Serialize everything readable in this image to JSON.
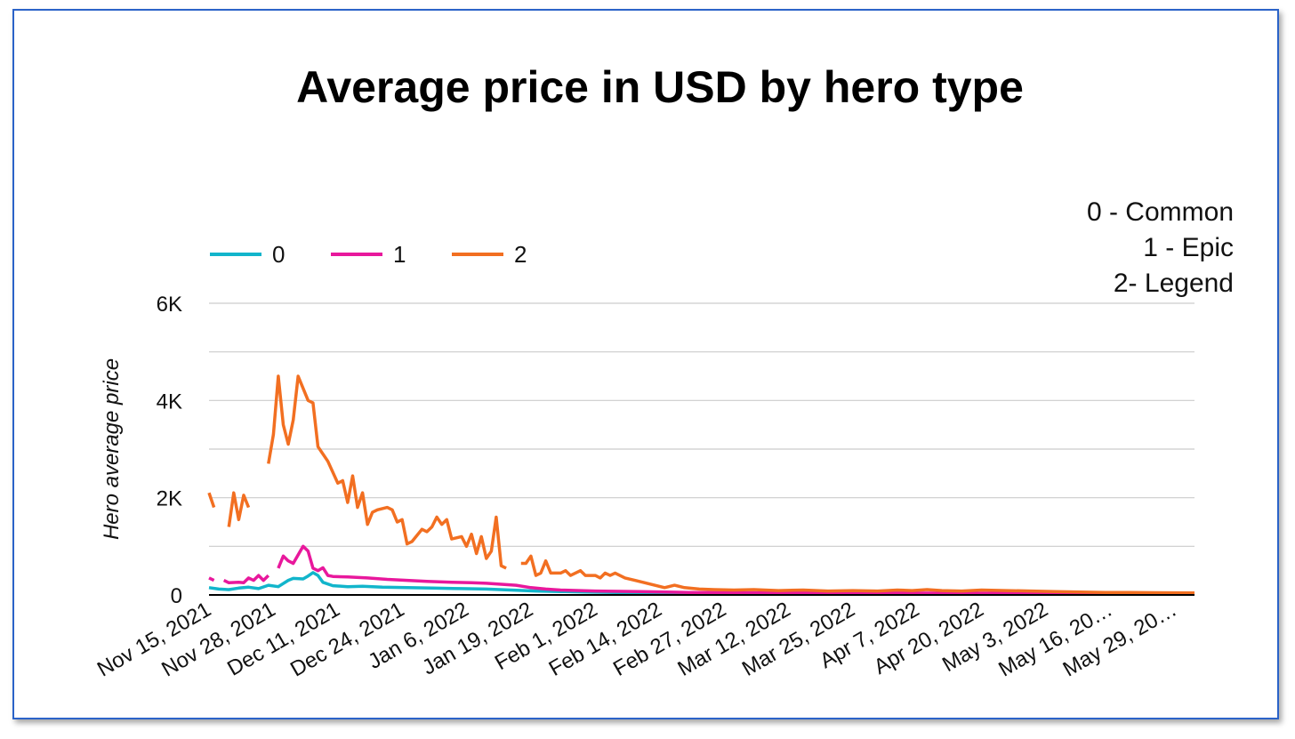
{
  "chart_data": {
    "type": "line",
    "title": "Average price in USD by hero type",
    "xlabel": "",
    "ylabel": "Hero average price",
    "ylim": [
      0,
      6000
    ],
    "y_ticks": [
      0,
      2000,
      4000,
      6000
    ],
    "y_tick_labels": [
      "0",
      "2K",
      "4K",
      "6K"
    ],
    "grid": true,
    "legend_position": "top-left",
    "note_lines": [
      "0 - Common",
      "1 - Epic",
      "2- Legend"
    ],
    "x_start": "2021-11-15",
    "x_end": "2022-06-02",
    "x_tick_dates": [
      "2021-11-15",
      "2021-11-28",
      "2021-12-11",
      "2021-12-24",
      "2022-01-06",
      "2022-01-19",
      "2022-02-01",
      "2022-02-14",
      "2022-02-27",
      "2022-03-12",
      "2022-03-25",
      "2022-04-07",
      "2022-04-20",
      "2022-05-03",
      "2022-05-16",
      "2022-05-29"
    ],
    "x_tick_labels": [
      "Nov 15, 2021",
      "Nov 28, 2021",
      "Dec 11, 2021",
      "Dec 24, 2021",
      "Jan 6, 2022",
      "Jan 19, 2022",
      "Feb 1, 2022",
      "Feb 14, 2022",
      "Feb 27, 2022",
      "Mar 12, 2022",
      "Mar 25, 2022",
      "Apr 7, 2022",
      "Apr 20, 2022",
      "May 3, 2022",
      "May 16, 20…",
      "May 29, 20…"
    ],
    "series": [
      {
        "name": "0",
        "color": "#12b5cb",
        "points": [
          [
            "2021-11-15",
            150
          ],
          [
            "2021-11-17",
            120
          ],
          [
            "2021-11-19",
            110
          ],
          [
            "2021-11-21",
            140
          ],
          [
            "2021-11-23",
            160
          ],
          [
            "2021-11-25",
            130
          ],
          [
            "2021-11-27",
            200
          ],
          [
            "2021-11-29",
            170
          ],
          [
            "2021-12-01",
            300
          ],
          [
            "2021-12-02",
            340
          ],
          [
            "2021-12-04",
            330
          ],
          [
            "2021-12-05",
            390
          ],
          [
            "2021-12-06",
            460
          ],
          [
            "2021-12-07",
            400
          ],
          [
            "2021-12-08",
            260
          ],
          [
            "2021-12-10",
            190
          ],
          [
            "2021-12-13",
            170
          ],
          [
            "2021-12-16",
            180
          ],
          [
            "2021-12-20",
            160
          ],
          [
            "2021-12-25",
            150
          ],
          [
            "2021-12-30",
            140
          ],
          [
            "2022-01-05",
            130
          ],
          [
            "2022-01-10",
            120
          ],
          [
            "2022-01-15",
            100
          ],
          [
            "2022-01-20",
            80
          ],
          [
            "2022-01-25",
            70
          ],
          [
            "2022-01-30",
            60
          ],
          [
            "2022-02-05",
            50
          ],
          [
            "2022-02-10",
            45
          ],
          [
            "2022-02-15",
            40
          ],
          [
            "2022-02-27",
            35
          ],
          [
            "2022-03-15",
            30
          ],
          [
            "2022-04-01",
            28
          ],
          [
            "2022-04-15",
            26
          ],
          [
            "2022-05-01",
            25
          ],
          [
            "2022-05-15",
            24
          ],
          [
            "2022-06-02",
            22
          ]
        ]
      },
      {
        "name": "1",
        "color": "#e8189c",
        "points": [
          [
            "2021-11-15",
            350
          ],
          [
            "2021-11-16",
            300
          ],
          null,
          [
            "2021-11-18",
            300
          ],
          [
            "2021-11-19",
            250
          ],
          [
            "2021-11-21",
            260
          ],
          [
            "2021-11-22",
            250
          ],
          [
            "2021-11-23",
            350
          ],
          [
            "2021-11-24",
            300
          ],
          [
            "2021-11-25",
            400
          ],
          [
            "2021-11-26",
            300
          ],
          [
            "2021-11-27",
            400
          ],
          null,
          [
            "2021-11-29",
            550
          ],
          [
            "2021-11-30",
            800
          ],
          [
            "2021-12-01",
            700
          ],
          [
            "2021-12-02",
            650
          ],
          [
            "2021-12-04",
            1000
          ],
          [
            "2021-12-05",
            900
          ],
          [
            "2021-12-06",
            550
          ],
          [
            "2021-12-07",
            500
          ],
          [
            "2021-12-08",
            560
          ],
          [
            "2021-12-09",
            400
          ],
          [
            "2021-12-10",
            380
          ],
          [
            "2021-12-13",
            370
          ],
          [
            "2021-12-17",
            350
          ],
          [
            "2021-12-21",
            320
          ],
          [
            "2021-12-25",
            300
          ],
          [
            "2021-12-29",
            280
          ],
          [
            "2022-01-03",
            260
          ],
          [
            "2022-01-07",
            250
          ],
          [
            "2022-01-10",
            240
          ],
          [
            "2022-01-13",
            220
          ],
          [
            "2022-01-16",
            200
          ],
          [
            "2022-01-19",
            150
          ],
          [
            "2022-01-22",
            120
          ],
          [
            "2022-01-25",
            100
          ],
          [
            "2022-02-01",
            80
          ],
          [
            "2022-02-10",
            70
          ],
          [
            "2022-02-20",
            50
          ],
          [
            "2022-03-10",
            40
          ],
          [
            "2022-04-01",
            40
          ],
          [
            "2022-04-20",
            35
          ],
          [
            "2022-05-10",
            30
          ],
          [
            "2022-06-02",
            25
          ]
        ]
      },
      {
        "name": "2",
        "color": "#f26f21",
        "points": [
          [
            "2021-11-15",
            2100
          ],
          [
            "2021-11-16",
            1800
          ],
          null,
          [
            "2021-11-19",
            1400
          ],
          [
            "2021-11-20",
            2100
          ],
          [
            "2021-11-21",
            1550
          ],
          [
            "2021-11-22",
            2050
          ],
          [
            "2021-11-23",
            1800
          ],
          null,
          [
            "2021-11-27",
            2700
          ],
          [
            "2021-11-28",
            3300
          ],
          [
            "2021-11-29",
            4500
          ],
          [
            "2021-11-30",
            3500
          ],
          [
            "2021-12-01",
            3100
          ],
          [
            "2021-12-02",
            3600
          ],
          [
            "2021-12-03",
            4500
          ],
          [
            "2021-12-04",
            4250
          ],
          [
            "2021-12-05",
            4000
          ],
          [
            "2021-12-06",
            3950
          ],
          [
            "2021-12-07",
            3050
          ],
          [
            "2021-12-09",
            2750
          ],
          [
            "2021-12-11",
            2300
          ],
          [
            "2021-12-12",
            2350
          ],
          [
            "2021-12-13",
            1900
          ],
          [
            "2021-12-14",
            2450
          ],
          [
            "2021-12-15",
            1800
          ],
          [
            "2021-12-16",
            2100
          ],
          [
            "2021-12-17",
            1450
          ],
          [
            "2021-12-18",
            1700
          ],
          [
            "2021-12-19",
            1750
          ],
          [
            "2021-12-21",
            1800
          ],
          [
            "2021-12-22",
            1750
          ],
          [
            "2021-12-23",
            1500
          ],
          [
            "2021-12-24",
            1550
          ],
          [
            "2021-12-25",
            1050
          ],
          [
            "2021-12-26",
            1100
          ],
          [
            "2021-12-28",
            1350
          ],
          [
            "2021-12-29",
            1300
          ],
          [
            "2021-12-30",
            1400
          ],
          [
            "2021-12-31",
            1600
          ],
          [
            "2022-01-01",
            1450
          ],
          [
            "2022-01-02",
            1550
          ],
          [
            "2022-01-03",
            1150
          ],
          [
            "2022-01-05",
            1200
          ],
          [
            "2022-01-06",
            1000
          ],
          [
            "2022-01-07",
            1250
          ],
          [
            "2022-01-08",
            850
          ],
          [
            "2022-01-09",
            1200
          ],
          [
            "2022-01-10",
            750
          ],
          [
            "2022-01-11",
            900
          ],
          [
            "2022-01-12",
            1600
          ],
          [
            "2022-01-13",
            600
          ],
          [
            "2022-01-14",
            550
          ],
          null,
          [
            "2022-01-17",
            650
          ],
          [
            "2022-01-18",
            650
          ],
          [
            "2022-01-19",
            800
          ],
          [
            "2022-01-20",
            400
          ],
          [
            "2022-01-21",
            450
          ],
          [
            "2022-01-22",
            700
          ],
          [
            "2022-01-23",
            450
          ],
          [
            "2022-01-25",
            450
          ],
          [
            "2022-01-26",
            500
          ],
          [
            "2022-01-27",
            400
          ],
          [
            "2022-01-29",
            500
          ],
          [
            "2022-01-30",
            400
          ],
          [
            "2022-02-01",
            400
          ],
          [
            "2022-02-02",
            350
          ],
          [
            "2022-02-03",
            450
          ],
          [
            "2022-02-04",
            400
          ],
          [
            "2022-02-05",
            450
          ],
          [
            "2022-02-07",
            350
          ],
          [
            "2022-02-09",
            300
          ],
          [
            "2022-02-11",
            250
          ],
          [
            "2022-02-13",
            200
          ],
          [
            "2022-02-15",
            150
          ],
          [
            "2022-02-17",
            200
          ],
          [
            "2022-02-19",
            150
          ],
          [
            "2022-02-22",
            120
          ],
          [
            "2022-02-25",
            110
          ],
          [
            "2022-03-01",
            100
          ],
          [
            "2022-03-05",
            110
          ],
          [
            "2022-03-10",
            90
          ],
          [
            "2022-03-15",
            100
          ],
          [
            "2022-03-20",
            80
          ],
          [
            "2022-03-25",
            90
          ],
          [
            "2022-03-30",
            80
          ],
          [
            "2022-04-03",
            100
          ],
          [
            "2022-04-06",
            90
          ],
          [
            "2022-04-09",
            110
          ],
          [
            "2022-04-12",
            90
          ],
          [
            "2022-04-16",
            80
          ],
          [
            "2022-04-20",
            100
          ],
          [
            "2022-04-25",
            90
          ],
          [
            "2022-04-30",
            80
          ],
          [
            "2022-05-05",
            70
          ],
          [
            "2022-05-10",
            60
          ],
          [
            "2022-05-15",
            50
          ],
          [
            "2022-05-20",
            50
          ],
          [
            "2022-05-25",
            45
          ],
          [
            "2022-06-02",
            40
          ]
        ]
      }
    ]
  }
}
